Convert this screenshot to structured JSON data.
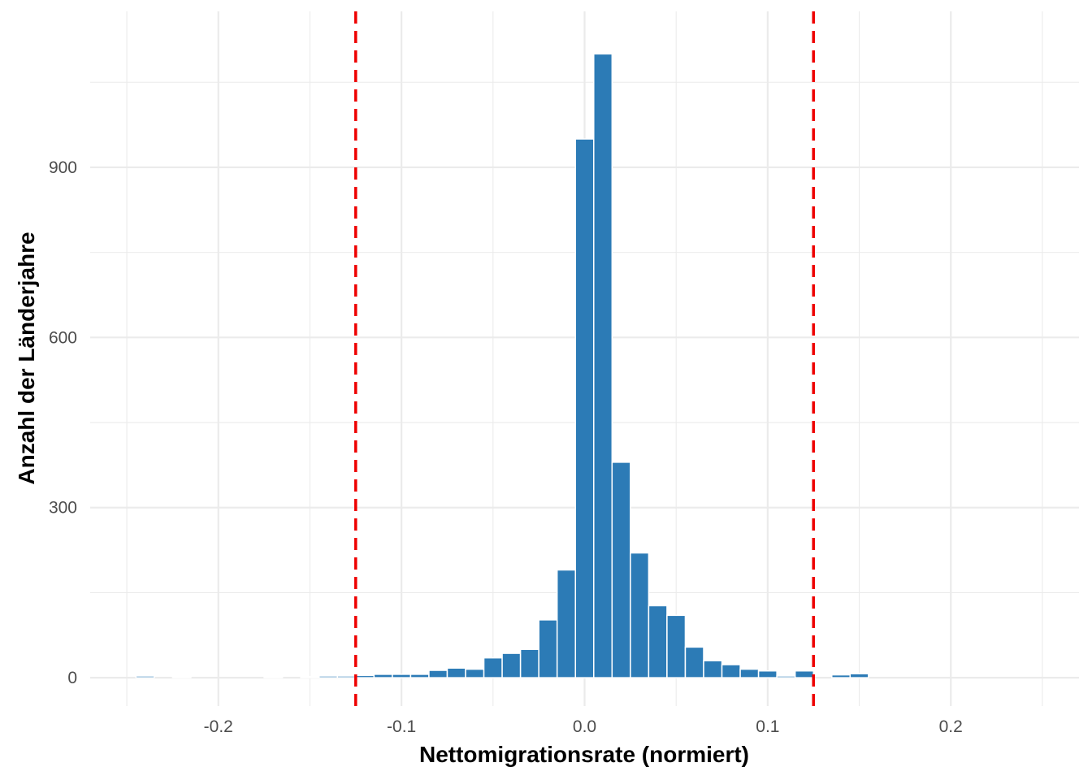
{
  "chart_data": {
    "type": "bar",
    "subtype": "histogram",
    "title": "",
    "xlabel": "Nettomigrationsrate (normiert)",
    "ylabel": "Anzahl der Länderjahre",
    "xlim": [
      -0.27,
      0.27
    ],
    "ylim": [
      -50,
      1175
    ],
    "x_ticks": [
      {
        "value": -0.2,
        "label": "-0.2"
      },
      {
        "value": -0.1,
        "label": "-0.1"
      },
      {
        "value": 0.0,
        "label": "0.0"
      },
      {
        "value": 0.1,
        "label": "0.1"
      },
      {
        "value": 0.2,
        "label": "0.2"
      }
    ],
    "y_ticks": [
      {
        "value": 0,
        "label": "0"
      },
      {
        "value": 300,
        "label": "300"
      },
      {
        "value": 600,
        "label": "600"
      },
      {
        "value": 900,
        "label": "900"
      }
    ],
    "x_minor_ticks": [
      -0.25,
      -0.15,
      -0.05,
      0.05,
      0.15,
      0.25
    ],
    "y_minor_ticks": [
      150,
      450,
      750,
      1050
    ],
    "grid": true,
    "bin_width": 0.01,
    "bar_color": "#2c7bb6",
    "bars": [
      {
        "x": -0.24,
        "count": 3
      },
      {
        "x": -0.22,
        "count": 2
      },
      {
        "x": -0.17,
        "count": 2
      },
      {
        "x": -0.15,
        "count": 2
      },
      {
        "x": -0.14,
        "count": 3
      },
      {
        "x": -0.13,
        "count": 3
      },
      {
        "x": -0.12,
        "count": 4
      },
      {
        "x": -0.11,
        "count": 6
      },
      {
        "x": -0.1,
        "count": 6
      },
      {
        "x": -0.09,
        "count": 6
      },
      {
        "x": -0.08,
        "count": 13
      },
      {
        "x": -0.07,
        "count": 17
      },
      {
        "x": -0.06,
        "count": 15
      },
      {
        "x": -0.05,
        "count": 35
      },
      {
        "x": -0.04,
        "count": 43
      },
      {
        "x": -0.03,
        "count": 50
      },
      {
        "x": -0.02,
        "count": 102
      },
      {
        "x": -0.01,
        "count": 190
      },
      {
        "x": 0.0,
        "count": 950
      },
      {
        "x": 0.01,
        "count": 1100
      },
      {
        "x": 0.02,
        "count": 380
      },
      {
        "x": 0.03,
        "count": 220
      },
      {
        "x": 0.04,
        "count": 127
      },
      {
        "x": 0.05,
        "count": 110
      },
      {
        "x": 0.06,
        "count": 54
      },
      {
        "x": 0.07,
        "count": 30
      },
      {
        "x": 0.08,
        "count": 23
      },
      {
        "x": 0.09,
        "count": 15
      },
      {
        "x": 0.1,
        "count": 12
      },
      {
        "x": 0.11,
        "count": 3
      },
      {
        "x": 0.12,
        "count": 12
      },
      {
        "x": 0.14,
        "count": 5
      },
      {
        "x": 0.15,
        "count": 7
      }
    ],
    "reference_lines": [
      {
        "x": -0.125,
        "color": "#ee0000",
        "style": "dashed"
      },
      {
        "x": 0.125,
        "color": "#ee0000",
        "style": "dashed"
      }
    ]
  }
}
